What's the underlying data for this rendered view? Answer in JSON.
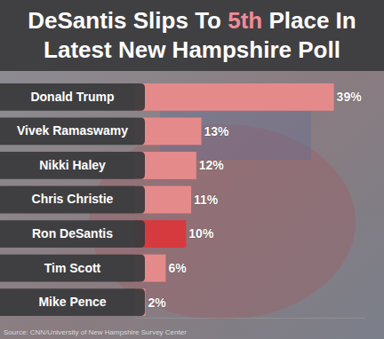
{
  "chart_data": {
    "type": "bar",
    "orientation": "horizontal",
    "title": "DeSantis Slips To 5th Place In Latest New Hampshire Poll",
    "source": "Source: CNN/University of New Hampshire Survey Center",
    "categories": [
      "Donald Trump",
      "Vivek Ramaswamy",
      "Nikki Haley",
      "Chris Christie",
      "Ron DeSantis",
      "Tim Scott",
      "Mike Pence"
    ],
    "values": [
      39,
      13,
      12,
      11,
      10,
      6,
      2
    ],
    "value_labels": [
      "39%",
      "13%",
      "12%",
      "11%",
      "10%",
      "6%",
      "2%"
    ],
    "colors": [
      "#e58a8a",
      "#e58a8a",
      "#e58a8a",
      "#e58a8a",
      "#d63a3f",
      "#e58a8a",
      "#e58a8a"
    ],
    "xlim": [
      0,
      45
    ],
    "xticks": [],
    "data_labels": true,
    "tick_labels": "y",
    "grid": false
  }
}
